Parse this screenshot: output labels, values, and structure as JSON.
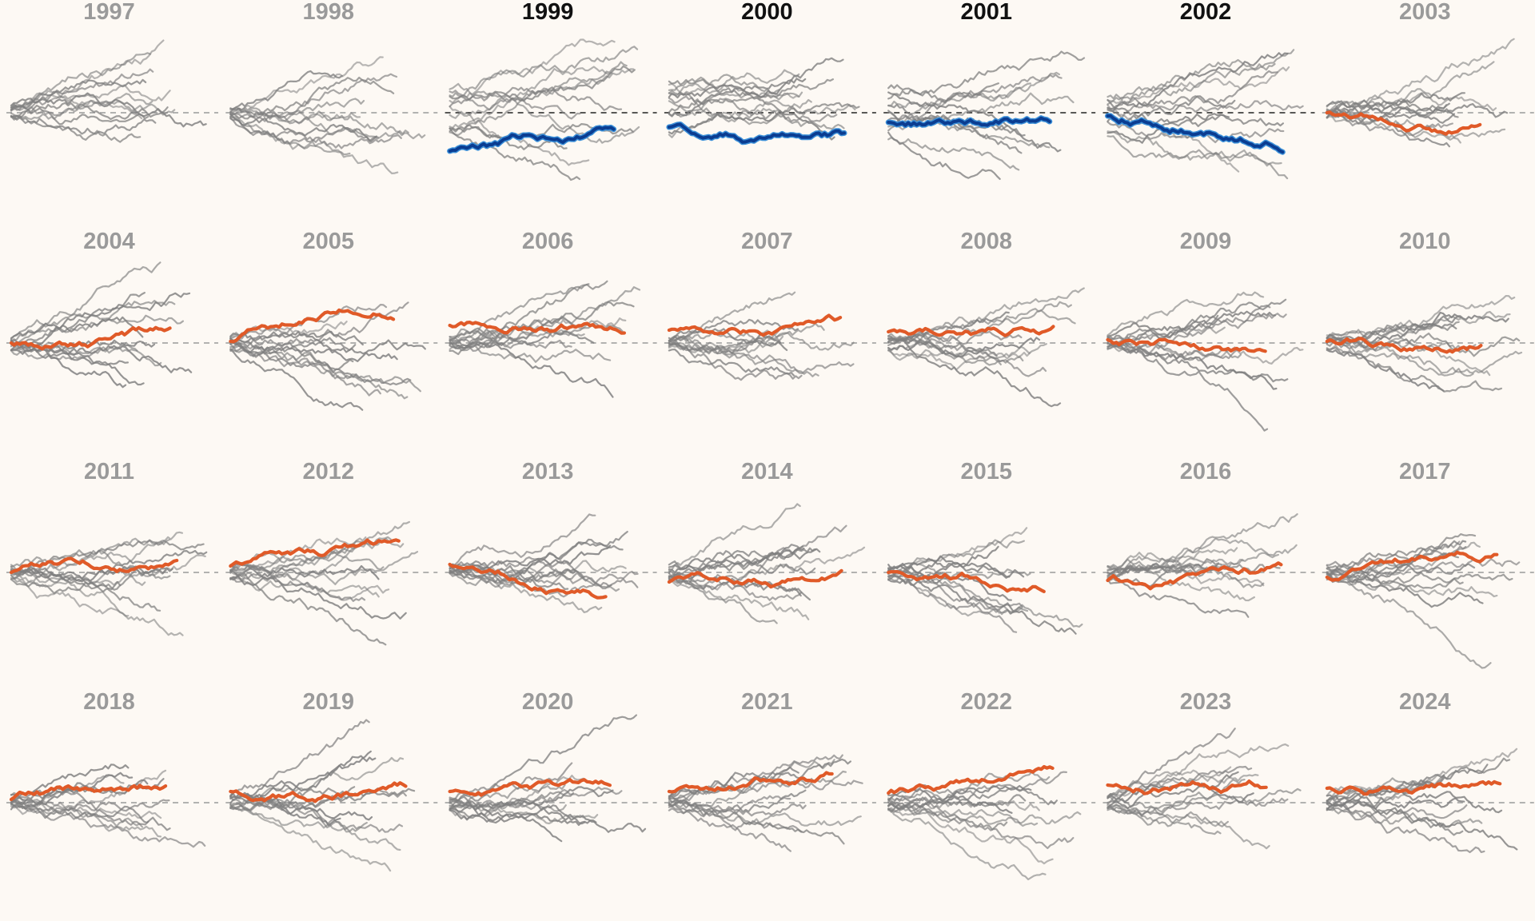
{
  "chart_data": {
    "type": "line",
    "title": "",
    "xlabel": "",
    "ylabel": "",
    "layout": "small-multiples",
    "grid_rows": 4,
    "grid_cols": 7,
    "colors": {
      "background": "#fdf9f4",
      "label_default": "#9a9a9a",
      "label_highlight": "#111111",
      "context_line": "#7f7f7f",
      "highlight_line": "#e05a28",
      "highlight_line_blue": "#0b3d91",
      "highlight_outline_blue": "#3a8fd8",
      "baseline_default": "#9a9a9a",
      "baseline_highlight": "#222222"
    },
    "panels": [
      {
        "year": "1997",
        "highlight": "none",
        "seed": 11,
        "hl_level": 0.0,
        "hl_trend": 0.0
      },
      {
        "year": "1998",
        "highlight": "none",
        "seed": 23,
        "hl_level": 0.0,
        "hl_trend": 0.0
      },
      {
        "year": "1999",
        "highlight": "blue",
        "seed": 37,
        "hl_level": -1.2,
        "hl_trend": 0.35
      },
      {
        "year": "2000",
        "highlight": "blue",
        "seed": 41,
        "hl_level": -0.45,
        "hl_trend": -0.05
      },
      {
        "year": "2001",
        "highlight": "blue",
        "seed": 53,
        "hl_level": -0.3,
        "hl_trend": -0.05
      },
      {
        "year": "2002",
        "highlight": "blue",
        "seed": 67,
        "hl_level": -0.1,
        "hl_trend": 0.0
      },
      {
        "year": "2003",
        "highlight": "orange",
        "seed": 71,
        "hl_level": 0.0,
        "hl_trend": 0.0
      },
      {
        "year": "2004",
        "highlight": "orange",
        "seed": 83,
        "hl_level": 0.0,
        "hl_trend": 0.15
      },
      {
        "year": "2005",
        "highlight": "orange",
        "seed": 97,
        "hl_level": 0.05,
        "hl_trend": 0.95
      },
      {
        "year": "2006",
        "highlight": "orange",
        "seed": 101,
        "hl_level": 0.55,
        "hl_trend": 0.4
      },
      {
        "year": "2007",
        "highlight": "orange",
        "seed": 113,
        "hl_level": 0.4,
        "hl_trend": 0.05
      },
      {
        "year": "2008",
        "highlight": "orange",
        "seed": 127,
        "hl_level": 0.35,
        "hl_trend": 0.05
      },
      {
        "year": "2009",
        "highlight": "orange",
        "seed": 131,
        "hl_level": 0.1,
        "hl_trend": -0.1
      },
      {
        "year": "2010",
        "highlight": "orange",
        "seed": 149,
        "hl_level": 0.05,
        "hl_trend": -0.05
      },
      {
        "year": "2011",
        "highlight": "orange",
        "seed": 151,
        "hl_level": 0.0,
        "hl_trend": 0.35
      },
      {
        "year": "2012",
        "highlight": "orange",
        "seed": 163,
        "hl_level": 0.2,
        "hl_trend": 0.35
      },
      {
        "year": "2013",
        "highlight": "orange",
        "seed": 173,
        "hl_level": 0.25,
        "hl_trend": -0.6
      },
      {
        "year": "2014",
        "highlight": "orange",
        "seed": 181,
        "hl_level": -0.3,
        "hl_trend": -0.05
      },
      {
        "year": "2015",
        "highlight": "orange",
        "seed": 191,
        "hl_level": 0.0,
        "hl_trend": -0.2
      },
      {
        "year": "2016",
        "highlight": "orange",
        "seed": 197,
        "hl_level": -0.25,
        "hl_trend": -0.1
      },
      {
        "year": "2017",
        "highlight": "orange",
        "seed": 211,
        "hl_level": -0.15,
        "hl_trend": 0.5
      },
      {
        "year": "2018",
        "highlight": "orange",
        "seed": 223,
        "hl_level": 0.1,
        "hl_trend": 0.3
      },
      {
        "year": "2019",
        "highlight": "orange",
        "seed": 227,
        "hl_level": 0.35,
        "hl_trend": 0.3
      },
      {
        "year": "2020",
        "highlight": "orange",
        "seed": 229,
        "hl_level": 0.35,
        "hl_trend": -0.1
      },
      {
        "year": "2021",
        "highlight": "orange",
        "seed": 233,
        "hl_level": 0.35,
        "hl_trend": 0.7
      },
      {
        "year": "2022",
        "highlight": "orange",
        "seed": 239,
        "hl_level": 0.3,
        "hl_trend": 0.6
      },
      {
        "year": "2023",
        "highlight": "orange",
        "seed": 241,
        "hl_level": 0.55,
        "hl_trend": 0.15
      },
      {
        "year": "2024",
        "highlight": "orange",
        "seed": 251,
        "hl_level": 0.45,
        "hl_trend": 0.35
      }
    ]
  }
}
